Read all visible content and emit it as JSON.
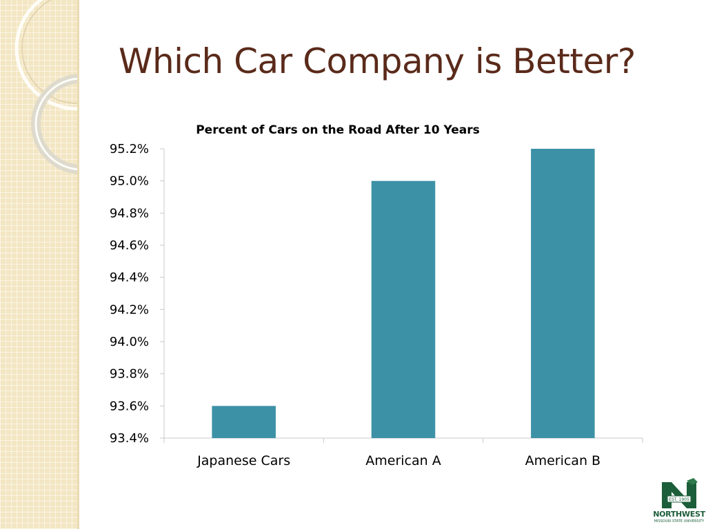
{
  "slide": {
    "title": "Which Car Company is Better?"
  },
  "logo": {
    "wordmark": "NORTHWEST",
    "subtext": "MISSOURI STATE UNIVERSITY",
    "badge_text": "EST. 1905"
  },
  "colors": {
    "title": "#5a2a1a",
    "bar": "#3d91a6",
    "axis": "#c8c8c8",
    "panel": "#f3e6c3",
    "logo_green": "#1d5e3a"
  },
  "chart_data": {
    "type": "bar",
    "title": "Percent of Cars on the Road After 10 Years",
    "xlabel": "",
    "ylabel": "",
    "categories": [
      "Japanese Cars",
      "American A",
      "American B"
    ],
    "values": [
      93.6,
      95.0,
      95.2
    ],
    "ylim": [
      93.4,
      95.2
    ],
    "yticks": [
      "93.4%",
      "93.6%",
      "93.8%",
      "94.0%",
      "94.2%",
      "94.4%",
      "94.6%",
      "94.8%",
      "95.0%",
      "95.2%"
    ],
    "ytick_values": [
      93.4,
      93.6,
      93.8,
      94.0,
      94.2,
      94.4,
      94.6,
      94.8,
      95.0,
      95.2
    ],
    "grid": false,
    "legend": "none"
  }
}
